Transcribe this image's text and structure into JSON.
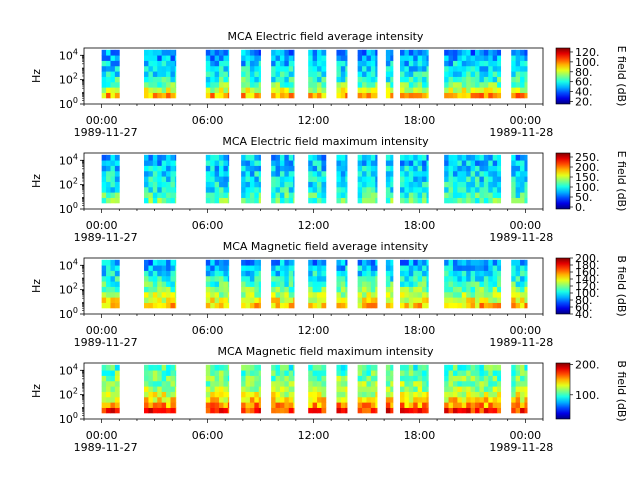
{
  "chart_data": [
    {
      "type": "heatmap",
      "title": "MCA  Electric field average intensity",
      "ylabel": "Hz",
      "colorbar_label": "E field (dB)",
      "colorbar_ticks": [
        "20.",
        "40.",
        "60.",
        "80.",
        "100.",
        "120."
      ],
      "colorbar_range": [
        15,
        128
      ],
      "x_tick_labels": [
        "00:00",
        "06:00",
        "12:00",
        "18:00",
        "00:00"
      ],
      "x_date_labels": [
        "1989-11-27",
        "1989-11-28"
      ],
      "y_tick_labels": [
        "10^0",
        "10^2",
        "10^4"
      ],
      "x_range_hours": [
        -1,
        25
      ],
      "y_range_log10": [
        0,
        4.6
      ],
      "data_segments_hours": [
        [
          0.0,
          1.0
        ],
        [
          2.4,
          4.2
        ],
        [
          5.9,
          7.2
        ],
        [
          7.9,
          9.0
        ],
        [
          9.6,
          10.9
        ],
        [
          11.7,
          12.7
        ],
        [
          13.3,
          13.9
        ],
        [
          14.5,
          15.6
        ],
        [
          16.1,
          16.5
        ],
        [
          16.9,
          18.5
        ],
        [
          19.4,
          22.6
        ],
        [
          23.2,
          24.1
        ]
      ],
      "spectrum_profile": [
        95,
        80,
        68,
        62,
        58,
        55,
        52,
        48,
        45
      ]
    },
    {
      "type": "heatmap",
      "title": "MCA  Electric field maximum intensity",
      "ylabel": "Hz",
      "colorbar_label": "E field (dB)",
      "colorbar_ticks": [
        "0.",
        "50.",
        "100.",
        "150.",
        "200.",
        "250."
      ],
      "colorbar_range": [
        -10,
        270
      ],
      "x_tick_labels": [
        "00:00",
        "06:00",
        "12:00",
        "18:00",
        "00:00"
      ],
      "x_date_labels": [
        "1989-11-27",
        "1989-11-28"
      ],
      "y_tick_labels": [
        "10^0",
        "10^2",
        "10^4"
      ],
      "x_range_hours": [
        -1,
        25
      ],
      "y_range_log10": [
        0,
        4.6
      ],
      "data_segments_hours": [
        [
          0.0,
          1.0
        ],
        [
          2.4,
          4.2
        ],
        [
          5.9,
          7.2
        ],
        [
          7.9,
          9.0
        ],
        [
          9.6,
          10.9
        ],
        [
          11.7,
          12.7
        ],
        [
          13.3,
          13.9
        ],
        [
          14.5,
          15.6
        ],
        [
          16.1,
          16.5
        ],
        [
          16.9,
          18.5
        ],
        [
          19.4,
          22.6
        ],
        [
          23.2,
          24.1
        ]
      ],
      "spectrum_profile": [
        120,
        110,
        100,
        95,
        92,
        88,
        85,
        80,
        76
      ]
    },
    {
      "type": "heatmap",
      "title": "MCA  Magnetic field average intensity",
      "ylabel": "Hz",
      "colorbar_label": "B field (dB)",
      "colorbar_ticks": [
        "40.",
        "60.",
        "80.",
        "100.",
        "120.",
        "140.",
        "160.",
        "180.",
        "200."
      ],
      "colorbar_range": [
        40,
        200
      ],
      "x_tick_labels": [
        "00:00",
        "06:00",
        "12:00",
        "18:00",
        "00:00"
      ],
      "x_date_labels": [
        "1989-11-27",
        "1989-11-28"
      ],
      "y_tick_labels": [
        "10^0",
        "10^2",
        "10^4"
      ],
      "x_range_hours": [
        -1,
        25
      ],
      "y_range_log10": [
        0,
        4.6
      ],
      "data_segments_hours": [
        [
          0.0,
          1.0
        ],
        [
          2.4,
          4.2
        ],
        [
          5.9,
          7.2
        ],
        [
          7.9,
          9.0
        ],
        [
          9.6,
          10.9
        ],
        [
          11.7,
          12.7
        ],
        [
          13.3,
          13.9
        ],
        [
          14.5,
          15.6
        ],
        [
          16.1,
          16.5
        ],
        [
          16.9,
          18.5
        ],
        [
          19.4,
          22.6
        ],
        [
          23.2,
          24.1
        ]
      ],
      "spectrum_profile": [
        150,
        138,
        128,
        118,
        110,
        104,
        98,
        92,
        86
      ]
    },
    {
      "type": "heatmap",
      "title": "MCA  Magnetic field maximum intensity",
      "ylabel": "Hz",
      "colorbar_label": "B field (dB)",
      "colorbar_ticks": [
        "100.",
        "200."
      ],
      "colorbar_range": [
        20,
        205
      ],
      "x_tick_labels": [
        "00:00",
        "06:00",
        "12:00",
        "18:00",
        "00:00"
      ],
      "x_date_labels": [
        "1989-11-27",
        "1989-11-28"
      ],
      "y_tick_labels": [
        "10^0",
        "10^2",
        "10^4"
      ],
      "x_range_hours": [
        -1,
        25
      ],
      "y_range_log10": [
        0,
        4.6
      ],
      "data_segments_hours": [
        [
          0.0,
          1.0
        ],
        [
          2.4,
          4.2
        ],
        [
          5.9,
          7.2
        ],
        [
          7.9,
          9.0
        ],
        [
          9.6,
          10.9
        ],
        [
          11.7,
          12.7
        ],
        [
          13.3,
          13.9
        ],
        [
          14.5,
          15.6
        ],
        [
          16.1,
          16.5
        ],
        [
          16.9,
          18.5
        ],
        [
          19.4,
          22.6
        ],
        [
          23.2,
          24.1
        ]
      ],
      "spectrum_profile": [
        175,
        155,
        140,
        128,
        120,
        114,
        110,
        106,
        102
      ]
    }
  ]
}
